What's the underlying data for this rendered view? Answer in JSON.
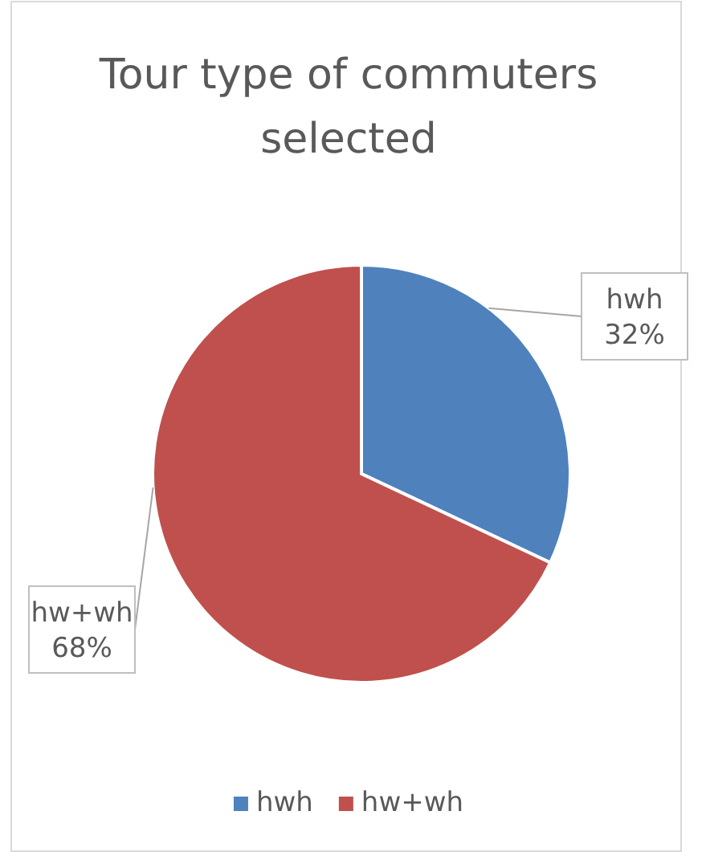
{
  "chart_data": {
    "type": "pie",
    "title": "Tour type of commuters selected",
    "categories": [
      "hwh",
      "hw+wh"
    ],
    "values": [
      32,
      68
    ],
    "colors": [
      "#4f81bd",
      "#c0504d"
    ],
    "value_labels": [
      "32%",
      "68%"
    ],
    "legend": "bottom"
  }
}
